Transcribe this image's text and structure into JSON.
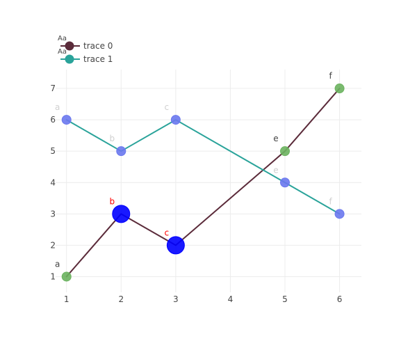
{
  "chart_data": {
    "type": "line",
    "x_ticks": [
      "1",
      "2",
      "3",
      "4",
      "5",
      "6"
    ],
    "y_ticks": [
      "1",
      "2",
      "3",
      "4",
      "5",
      "6",
      "7"
    ],
    "xlim": [
      0.8,
      6.4
    ],
    "ylim": [
      0.5,
      7.6
    ],
    "grid": true,
    "legend_placement": "top-left",
    "series": [
      {
        "name": "trace 0",
        "line_color": "#5b2b3a",
        "legend_marker_color": "#5b2b3a",
        "x": [
          1,
          2,
          3,
          5,
          6
        ],
        "y": [
          1,
          3,
          2,
          5,
          7
        ],
        "labels": [
          "a",
          "b",
          "c",
          "e",
          "f"
        ],
        "marker_colors": [
          "#6bb35f",
          "#0000ff",
          "#0000ff",
          "#6bb35f",
          "#6bb35f"
        ],
        "marker_sizes": [
          13,
          25,
          25,
          13,
          13
        ],
        "label_colors": [
          "#444444",
          "#ff0000",
          "#ff0000",
          "#444444",
          "#444444"
        ]
      },
      {
        "name": "trace 1",
        "line_color": "#2aa39a",
        "legend_marker_color": "#2aa39a",
        "x": [
          1,
          2,
          3,
          5,
          6
        ],
        "y": [
          6,
          5,
          6,
          4,
          3
        ],
        "labels": [
          "a",
          "b",
          "c",
          "e",
          "f"
        ],
        "marker_colors": [
          "#6a78ee",
          "#6a78ee",
          "#6a78ee",
          "#6a78ee",
          "#6a78ee"
        ],
        "marker_sizes": [
          13,
          13,
          13,
          13,
          13
        ],
        "label_colors": [
          "#d0d0d0",
          "#d0d0d0",
          "#d0d0d0",
          "#d0d0d0",
          "#d0d0d0"
        ]
      }
    ],
    "legend_swatch_text": "Aa"
  }
}
